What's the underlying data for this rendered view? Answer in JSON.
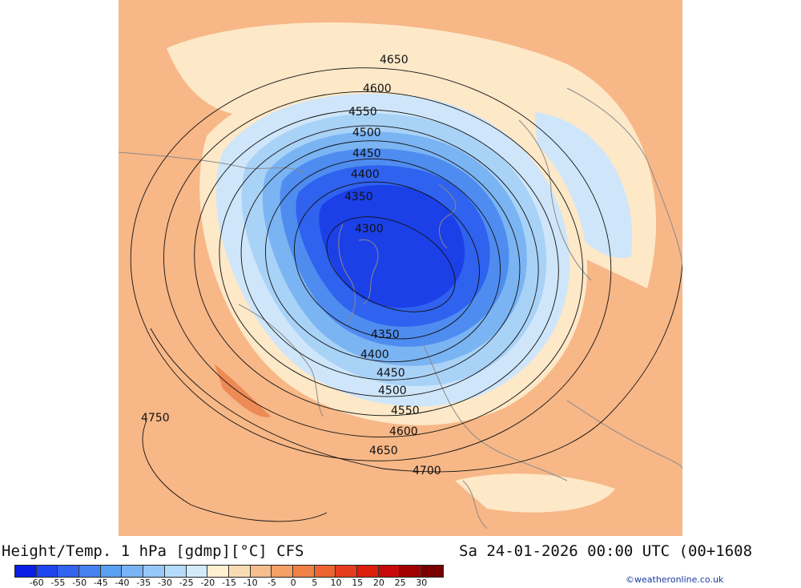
{
  "title_left": "Height/Temp. 1 hPa [gdmp][°C] CFS",
  "title_right": "Sa 24-01-2026 00:00 UTC (00+1608",
  "credit": "©weatheronline.co.uk",
  "contours": [
    {
      "value": 4300,
      "label": "4300"
    },
    {
      "value": 4350,
      "label": "4350"
    },
    {
      "value": 4400,
      "label": "4400"
    },
    {
      "value": 4450,
      "label": "4450"
    },
    {
      "value": 4500,
      "label": "4500"
    },
    {
      "value": 4550,
      "label": "4550"
    },
    {
      "value": 4600,
      "label": "4600"
    },
    {
      "value": 4650,
      "label": "4650"
    },
    {
      "value": 4700,
      "label": "4700"
    },
    {
      "value": 4750,
      "label": "4750"
    }
  ],
  "colorbar": {
    "ticks": [
      "-60",
      "-55",
      "-50",
      "-45",
      "-40",
      "-35",
      "-30",
      "-25",
      "-20",
      "-15",
      "-10",
      "-5",
      "0",
      "5",
      "10",
      "15",
      "20",
      "25",
      "30"
    ],
    "colors": [
      "#0a1ee6",
      "#1e46f0",
      "#3264f0",
      "#4682f0",
      "#5aa0f0",
      "#78b4f5",
      "#96c8fa",
      "#b4dcfa",
      "#d2ebfa",
      "#fff0d2",
      "#fadcb4",
      "#f5be8c",
      "#f5a064",
      "#f08246",
      "#eb6432",
      "#e63c1e",
      "#dc1e0a",
      "#c80a0a",
      "#a00000",
      "#780000"
    ]
  }
}
